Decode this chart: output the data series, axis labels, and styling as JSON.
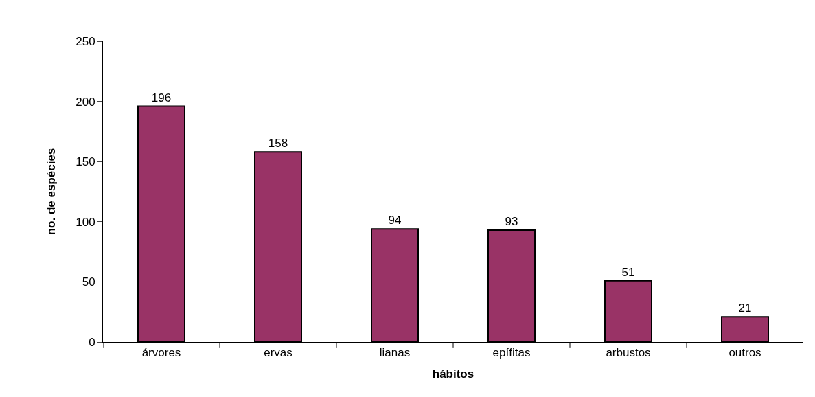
{
  "chart_data": {
    "type": "bar",
    "xlabel": "hábitos",
    "ylabel": "no. de espécies",
    "categories": [
      "árvores",
      "ervas",
      "lianas",
      "epífitas",
      "arbustos",
      "outros"
    ],
    "values": [
      196,
      158,
      94,
      93,
      51,
      21
    ],
    "color": "#993366",
    "ylim": [
      0,
      250
    ],
    "yticks": [
      0,
      50,
      100,
      150,
      200,
      250
    ],
    "grid": false,
    "data_labels": true,
    "legend": false
  }
}
